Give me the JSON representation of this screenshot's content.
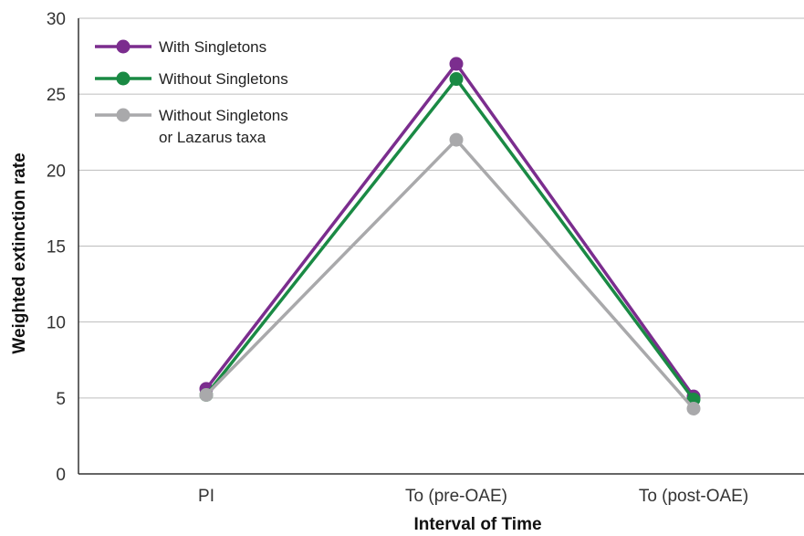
{
  "chart_data": {
    "type": "line",
    "categories": [
      "PI",
      "To (pre-OAE)",
      "To (post-OAE)"
    ],
    "series": [
      {
        "name": "With Singletons",
        "values": [
          5.6,
          27.0,
          5.1
        ],
        "color": "#7b2d8e"
      },
      {
        "name": "Without Singletons",
        "values": [
          5.2,
          26.0,
          4.9
        ],
        "color": "#1a8a44"
      },
      {
        "name": "Without Singletons or Lazarus taxa",
        "name_lines": [
          "Without Singletons",
          "or Lazarus taxa"
        ],
        "values": [
          5.2,
          22.0,
          4.3
        ],
        "color": "#a9a9ab"
      }
    ],
    "xlabel": "Interval of Time",
    "ylabel": "Weighted extinction rate",
    "ylim": [
      0,
      30
    ],
    "yticks": [
      0,
      5,
      10,
      15,
      20,
      25,
      30
    ],
    "grid": true,
    "legend_position": "top-left"
  }
}
